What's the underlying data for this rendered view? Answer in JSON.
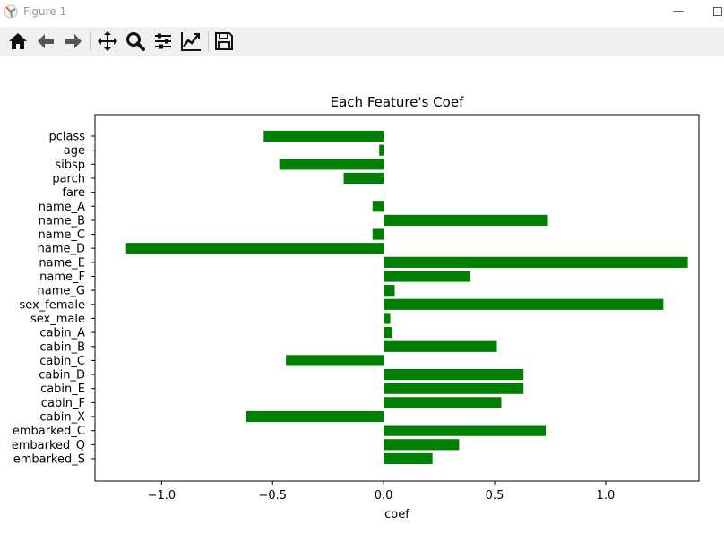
{
  "window": {
    "title": "Figure 1"
  },
  "toolbar": {
    "icons": [
      "home-icon",
      "back-arrow-icon",
      "forward-arrow-icon",
      "pan-icon",
      "zoom-icon",
      "configure-subplots-icon",
      "edit-axis-icon",
      "save-icon"
    ]
  },
  "colors": {
    "bar": "#008000",
    "axes": "#000000",
    "toolbar_bg": "#f0f0f0"
  },
  "chart_data": {
    "type": "bar",
    "orientation": "horizontal",
    "title": "Each Feature's Coef",
    "xlabel": "coef",
    "ylabel": "",
    "xlim": [
      -1.3,
      1.42
    ],
    "xticks": [
      -1.0,
      -0.5,
      0.0,
      0.5,
      1.0
    ],
    "xtick_labels": [
      "−1.0",
      "−0.5",
      "0.0",
      "0.5",
      "1.0"
    ],
    "grid": false,
    "categories": [
      "pclass",
      "age",
      "sibsp",
      "parch",
      "fare",
      "name_A",
      "name_B",
      "name_C",
      "name_D",
      "name_E",
      "name_F",
      "name_G",
      "sex_female",
      "sex_male",
      "cabin_A",
      "cabin_B",
      "cabin_C",
      "cabin_D",
      "cabin_E",
      "cabin_F",
      "cabin_X",
      "embarked_C",
      "embarked_Q",
      "embarked_S"
    ],
    "values": [
      -0.54,
      -0.02,
      -0.47,
      -0.18,
      0.003,
      -0.05,
      0.74,
      -0.05,
      -1.16,
      1.37,
      0.39,
      0.05,
      1.26,
      0.03,
      0.04,
      0.51,
      -0.44,
      0.63,
      0.63,
      0.53,
      -0.62,
      0.73,
      0.34,
      0.22
    ]
  }
}
